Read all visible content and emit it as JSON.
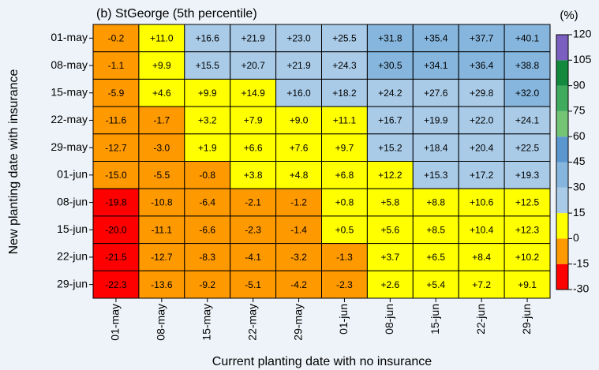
{
  "chart_data": {
    "type": "heatmap",
    "title": "(b) StGeorge (5th percentile)",
    "x_label": "Current planting date with no insurance",
    "y_label": "New planting date with insurance",
    "x_categories": [
      "01-may",
      "08-may",
      "15-may",
      "22-may",
      "29-may",
      "01-jun",
      "08-jun",
      "15-jun",
      "22-jun",
      "29-jun"
    ],
    "y_categories": [
      "01-may",
      "08-may",
      "15-may",
      "22-may",
      "29-may",
      "01-jun",
      "08-jun",
      "15-jun",
      "22-jun",
      "29-jun"
    ],
    "values": [
      [
        -0.2,
        11.0,
        16.6,
        21.9,
        23.0,
        25.5,
        31.8,
        35.4,
        37.7,
        40.1
      ],
      [
        -1.1,
        9.9,
        15.5,
        20.7,
        21.9,
        24.3,
        30.5,
        34.1,
        36.4,
        38.8
      ],
      [
        -5.9,
        4.6,
        9.9,
        14.9,
        16.0,
        18.2,
        24.2,
        27.6,
        29.8,
        32.0
      ],
      [
        -11.6,
        -1.7,
        3.2,
        7.9,
        9.0,
        11.1,
        16.7,
        19.9,
        22.0,
        24.1
      ],
      [
        -12.7,
        -3.0,
        1.9,
        6.6,
        7.6,
        9.7,
        15.2,
        18.4,
        20.4,
        22.5
      ],
      [
        -15.0,
        -5.5,
        -0.8,
        3.8,
        4.8,
        6.8,
        12.2,
        15.3,
        17.2,
        19.3
      ],
      [
        -19.8,
        -10.8,
        -6.4,
        -2.1,
        -1.2,
        0.8,
        5.8,
        8.8,
        10.6,
        12.5
      ],
      [
        -20.0,
        -11.1,
        -6.6,
        -2.3,
        -1.4,
        0.5,
        5.6,
        8.5,
        10.4,
        12.3
      ],
      [
        -21.5,
        -12.7,
        -8.3,
        -4.1,
        -3.2,
        -1.3,
        3.7,
        6.5,
        8.4,
        10.2
      ],
      [
        -22.3,
        -13.6,
        -9.2,
        -5.1,
        -4.2,
        -2.3,
        2.6,
        5.4,
        7.2,
        9.1
      ]
    ],
    "value_labels": [
      [
        "-0.2",
        "+11.0",
        "+16.6",
        "+21.9",
        "+23.0",
        "+25.5",
        "+31.8",
        "+35.4",
        "+37.7",
        "+40.1"
      ],
      [
        "-1.1",
        "+9.9",
        "+15.5",
        "+20.7",
        "+21.9",
        "+24.3",
        "+30.5",
        "+34.1",
        "+36.4",
        "+38.8"
      ],
      [
        "-5.9",
        "+4.6",
        "+9.9",
        "+14.9",
        "+16.0",
        "+18.2",
        "+24.2",
        "+27.6",
        "+29.8",
        "+32.0"
      ],
      [
        "-11.6",
        "-1.7",
        "+3.2",
        "+7.9",
        "+9.0",
        "+11.1",
        "+16.7",
        "+19.9",
        "+22.0",
        "+24.1"
      ],
      [
        "-12.7",
        "-3.0",
        "+1.9",
        "+6.6",
        "+7.6",
        "+9.7",
        "+15.2",
        "+18.4",
        "+20.4",
        "+22.5"
      ],
      [
        "-15.0",
        "-5.5",
        "-0.8",
        "+3.8",
        "+4.8",
        "+6.8",
        "+12.2",
        "+15.3",
        "+17.2",
        "+19.3"
      ],
      [
        "-19.8",
        "-10.8",
        "-6.4",
        "-2.1",
        "-1.2",
        "+0.8",
        "+5.8",
        "+8.8",
        "+10.6",
        "+12.5"
      ],
      [
        "-20.0",
        "-11.1",
        "-6.6",
        "-2.3",
        "-1.4",
        "+0.5",
        "+5.6",
        "+8.5",
        "+10.4",
        "+12.3"
      ],
      [
        "-21.5",
        "-12.7",
        "-8.3",
        "-4.1",
        "-3.2",
        "-1.3",
        "+3.7",
        "+6.5",
        "+8.4",
        "+10.2"
      ],
      [
        "-22.3",
        "-13.6",
        "-9.2",
        "-5.1",
        "-4.2",
        "-2.3",
        "+2.6",
        "+5.4",
        "+7.2",
        "+9.1"
      ]
    ],
    "colorbar": {
      "label": "(%)",
      "clim": [
        -30,
        120
      ],
      "ticks": [
        -30,
        -15,
        0,
        15,
        30,
        45,
        60,
        75,
        90,
        105,
        120
      ],
      "colors": [
        "#ff0000",
        "#ff9900",
        "#ffff00",
        "#a9cbe8",
        "#86b6de",
        "#5b97cf",
        "#74c476",
        "#41ab5d",
        "#13893e",
        "#7b5fc0"
      ]
    }
  }
}
